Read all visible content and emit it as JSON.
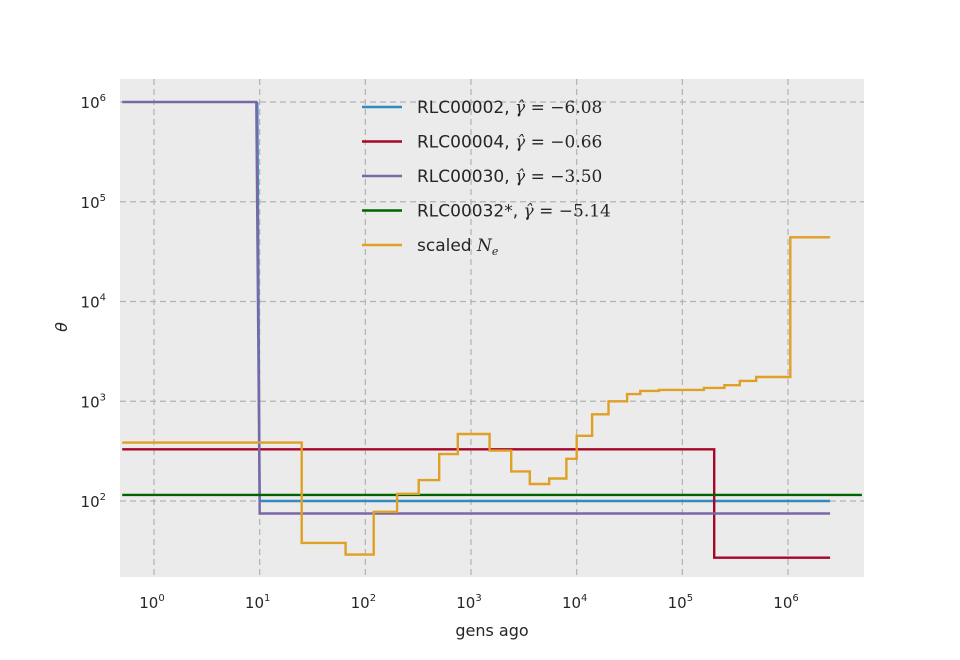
{
  "chart_data": {
    "type": "line",
    "step": true,
    "xscale": "log",
    "yscale": "log",
    "xlabel": "gens ago",
    "ylabel": "θ",
    "xlim": [
      0.5,
      5000000
    ],
    "ylim": [
      17,
      1600000
    ],
    "grid": true,
    "legend_position": "top-center",
    "x_ticks": [
      {
        "value": 1,
        "base": "10",
        "exp": "0"
      },
      {
        "value": 10,
        "base": "10",
        "exp": "1"
      },
      {
        "value": 100,
        "base": "10",
        "exp": "2"
      },
      {
        "value": 1000,
        "base": "10",
        "exp": "3"
      },
      {
        "value": 10000,
        "base": "10",
        "exp": "4"
      },
      {
        "value": 100000,
        "base": "10",
        "exp": "5"
      },
      {
        "value": 1000000,
        "base": "10",
        "exp": "6"
      }
    ],
    "y_ticks": [
      {
        "value": 100,
        "base": "10",
        "exp": "2"
      },
      {
        "value": 1000,
        "base": "10",
        "exp": "3"
      },
      {
        "value": 10000,
        "base": "10",
        "exp": "4"
      },
      {
        "value": 100000,
        "base": "10",
        "exp": "5"
      },
      {
        "value": 1000000,
        "base": "10",
        "exp": "6"
      }
    ],
    "series": [
      {
        "name": "RLC00002",
        "gamma": "= −6.08",
        "color": "#348abd",
        "points": [
          [
            9.5,
            1000000
          ],
          [
            10,
            100
          ],
          [
            2500000,
            100
          ]
        ]
      },
      {
        "name": "RLC00004",
        "gamma": "= −0.66",
        "color": "#a60628",
        "points": [
          [
            0.5,
            330
          ],
          [
            200000,
            330
          ],
          [
            200000,
            27
          ],
          [
            2500000,
            27
          ]
        ]
      },
      {
        "name": "RLC00030",
        "gamma": "= −3.50",
        "color": "#7a68a6",
        "points": [
          [
            0.5,
            1000000
          ],
          [
            9.3,
            1000000
          ],
          [
            10,
            75
          ],
          [
            2500000,
            75
          ]
        ]
      },
      {
        "name": "RLC00032*",
        "gamma": "= −5.14",
        "color": "#006400",
        "points": [
          [
            0.5,
            115
          ],
          [
            5000000,
            115
          ]
        ]
      },
      {
        "name": "scaled ",
        "name_math": "N",
        "name_sub": "e",
        "color": "#e0a025",
        "points": [
          [
            0.5,
            385
          ],
          [
            25,
            385
          ],
          [
            25,
            38
          ],
          [
            65,
            38
          ],
          [
            65,
            29
          ],
          [
            120,
            29
          ],
          [
            120,
            78
          ],
          [
            200,
            78
          ],
          [
            200,
            118
          ],
          [
            320,
            118
          ],
          [
            320,
            162
          ],
          [
            500,
            162
          ],
          [
            500,
            295
          ],
          [
            750,
            295
          ],
          [
            750,
            470
          ],
          [
            1500,
            470
          ],
          [
            1500,
            320
          ],
          [
            2400,
            320
          ],
          [
            2400,
            198
          ],
          [
            3600,
            198
          ],
          [
            3600,
            148
          ],
          [
            5500,
            148
          ],
          [
            5500,
            168
          ],
          [
            8000,
            168
          ],
          [
            8000,
            265
          ],
          [
            10000,
            265
          ],
          [
            10000,
            450
          ],
          [
            14000,
            450
          ],
          [
            14000,
            740
          ],
          [
            20000,
            740
          ],
          [
            20000,
            1000
          ],
          [
            30000,
            1000
          ],
          [
            30000,
            1180
          ],
          [
            40000,
            1180
          ],
          [
            40000,
            1270
          ],
          [
            60000,
            1270
          ],
          [
            60000,
            1300
          ],
          [
            160000,
            1300
          ],
          [
            160000,
            1360
          ],
          [
            250000,
            1360
          ],
          [
            250000,
            1450
          ],
          [
            350000,
            1450
          ],
          [
            350000,
            1600
          ],
          [
            500000,
            1600
          ],
          [
            500000,
            1750
          ],
          [
            1050000,
            1750
          ],
          [
            1050000,
            44000
          ],
          [
            2500000,
            44000
          ]
        ]
      }
    ]
  }
}
